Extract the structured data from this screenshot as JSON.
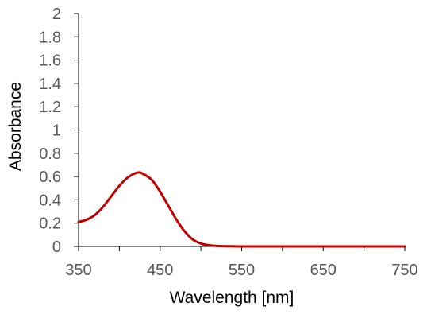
{
  "chart_data": {
    "type": "line",
    "title": "",
    "xlabel": "Wavelength [nm]",
    "ylabel": "Absorbance",
    "xlim": [
      350,
      750
    ],
    "ylim": [
      0,
      2
    ],
    "x_ticks": [
      350,
      450,
      550,
      650,
      750
    ],
    "x_tick_labels": [
      "350",
      "450",
      "550",
      "650",
      "750"
    ],
    "x_minor_step": 50,
    "y_ticks": [
      0,
      0.2,
      0.4,
      0.6,
      0.8,
      1,
      1.2,
      1.4,
      1.6,
      1.8,
      2
    ],
    "y_tick_labels": [
      "0",
      "0.2",
      "0.4",
      "0.6",
      "0.8",
      "1",
      "1.2",
      "1.4",
      "1.6",
      "1.8",
      "2"
    ],
    "grid": false,
    "legend": "none",
    "series": [
      {
        "color": "#c00000",
        "x": [
          350,
          360,
          370,
          380,
          390,
          400,
          410,
          420,
          425,
          430,
          440,
          450,
          460,
          470,
          480,
          490,
          500,
          510,
          520,
          530,
          540,
          550,
          600,
          650,
          700,
          750
        ],
        "y": [
          0.21,
          0.23,
          0.27,
          0.34,
          0.43,
          0.52,
          0.59,
          0.63,
          0.635,
          0.62,
          0.57,
          0.47,
          0.35,
          0.23,
          0.13,
          0.06,
          0.025,
          0.01,
          0.004,
          0.002,
          0.001,
          0,
          0,
          0,
          0,
          0
        ]
      }
    ]
  }
}
